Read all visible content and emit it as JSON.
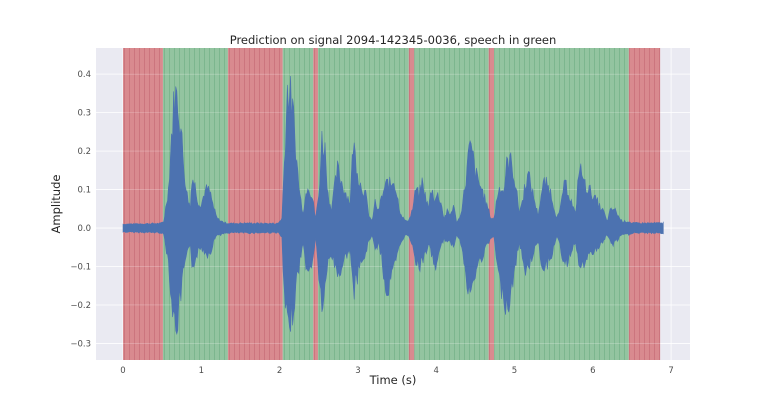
{
  "chart_data": {
    "type": "area",
    "title": "Prediction on signal 2094-142345-0036, speech in green",
    "xlabel": "Time (s)",
    "ylabel": "Amplitude",
    "xlim": [
      -0.34,
      7.25
    ],
    "ylim": [
      -0.343,
      0.468
    ],
    "xticks": [
      0,
      1,
      2,
      3,
      4,
      5,
      6,
      7
    ],
    "yticks": [
      -0.3,
      -0.2,
      -0.1,
      0.0,
      0.1,
      0.2,
      0.3,
      0.4
    ],
    "ytick_labels": [
      "−0.3",
      "−0.2",
      "−0.1",
      "0.0",
      "0.1",
      "0.2",
      "0.3",
      "0.4"
    ],
    "grid": true,
    "background": "#eaeaf2",
    "frame_width_s": 0.064,
    "segments": [
      {
        "label": "non-speech",
        "color": "#d98a8f",
        "start": 0.0,
        "end": 0.51
      },
      {
        "label": "speech",
        "color": "#93c4a0",
        "start": 0.51,
        "end": 1.34
      },
      {
        "label": "non-speech",
        "color": "#d98a8f",
        "start": 1.34,
        "end": 2.04
      },
      {
        "label": "speech",
        "color": "#93c4a0",
        "start": 2.04,
        "end": 2.43
      },
      {
        "label": "non-speech",
        "color": "#d98a8f",
        "start": 2.43,
        "end": 2.49
      },
      {
        "label": "speech",
        "color": "#93c4a0",
        "start": 2.49,
        "end": 3.65
      },
      {
        "label": "non-speech",
        "color": "#d98a8f",
        "start": 3.65,
        "end": 3.72
      },
      {
        "label": "speech",
        "color": "#93c4a0",
        "start": 3.72,
        "end": 4.67
      },
      {
        "label": "non-speech",
        "color": "#d98a8f",
        "start": 4.67,
        "end": 4.74
      },
      {
        "label": "speech",
        "color": "#93c4a0",
        "start": 4.74,
        "end": 6.46
      },
      {
        "label": "non-speech",
        "color": "#d98a8f",
        "start": 6.46,
        "end": 6.86
      }
    ],
    "series": [
      {
        "name": "signal",
        "color": "#4c72b0",
        "envelope": {
          "t": [
            0.0,
            0.48,
            0.52,
            0.58,
            0.62,
            0.66,
            0.7,
            0.74,
            0.78,
            0.82,
            0.86,
            0.88,
            0.92,
            0.96,
            1.0,
            1.04,
            1.08,
            1.12,
            1.16,
            1.2,
            1.26,
            1.32,
            1.4,
            1.6,
            1.8,
            1.98,
            2.03,
            2.06,
            2.1,
            2.14,
            2.18,
            2.22,
            2.26,
            2.3,
            2.36,
            2.42,
            2.46,
            2.5,
            2.54,
            2.58,
            2.62,
            2.66,
            2.7,
            2.74,
            2.78,
            2.82,
            2.86,
            2.9,
            2.94,
            2.98,
            3.02,
            3.06,
            3.1,
            3.14,
            3.18,
            3.22,
            3.26,
            3.3,
            3.34,
            3.38,
            3.42,
            3.46,
            3.5,
            3.54,
            3.58,
            3.62,
            3.66,
            3.7,
            3.74,
            3.78,
            3.82,
            3.86,
            3.9,
            3.94,
            3.98,
            4.02,
            4.06,
            4.1,
            4.14,
            4.18,
            4.22,
            4.26,
            4.3,
            4.34,
            4.38,
            4.42,
            4.46,
            4.5,
            4.54,
            4.58,
            4.62,
            4.66,
            4.7,
            4.74,
            4.78,
            4.82,
            4.86,
            4.9,
            4.94,
            4.98,
            5.02,
            5.06,
            5.1,
            5.14,
            5.18,
            5.22,
            5.26,
            5.3,
            5.34,
            5.38,
            5.42,
            5.46,
            5.5,
            5.54,
            5.58,
            5.62,
            5.66,
            5.7,
            5.74,
            5.78,
            5.82,
            5.86,
            5.9,
            5.94,
            5.98,
            6.02,
            6.06,
            6.1,
            6.14,
            6.18,
            6.22,
            6.26,
            6.3,
            6.34,
            6.38,
            6.42,
            6.46,
            6.5,
            6.7,
            6.9
          ],
          "upper": [
            0.012,
            0.014,
            0.02,
            0.12,
            0.28,
            0.41,
            0.39,
            0.3,
            0.18,
            0.1,
            0.06,
            0.16,
            0.13,
            0.08,
            0.07,
            0.11,
            0.12,
            0.1,
            0.06,
            0.03,
            0.02,
            0.015,
            0.014,
            0.015,
            0.014,
            0.014,
            0.03,
            0.2,
            0.42,
            0.4,
            0.33,
            0.2,
            0.1,
            0.05,
            0.14,
            0.09,
            0.03,
            0.1,
            0.27,
            0.24,
            0.1,
            0.06,
            0.12,
            0.18,
            0.15,
            0.12,
            0.1,
            0.08,
            0.26,
            0.2,
            0.14,
            0.12,
            0.1,
            0.04,
            0.02,
            0.08,
            0.05,
            0.09,
            0.12,
            0.14,
            0.13,
            0.15,
            0.1,
            0.05,
            0.03,
            0.02,
            0.03,
            0.06,
            0.12,
            0.1,
            0.14,
            0.1,
            0.06,
            0.12,
            0.09,
            0.1,
            0.08,
            0.03,
            0.05,
            0.04,
            0.07,
            0.02,
            0.03,
            0.08,
            0.15,
            0.24,
            0.23,
            0.17,
            0.14,
            0.12,
            0.09,
            0.06,
            0.03,
            0.03,
            0.1,
            0.13,
            0.11,
            0.19,
            0.21,
            0.18,
            0.12,
            0.05,
            0.08,
            0.14,
            0.16,
            0.12,
            0.08,
            0.04,
            0.1,
            0.14,
            0.13,
            0.11,
            0.07,
            0.03,
            0.05,
            0.12,
            0.13,
            0.1,
            0.07,
            0.04,
            0.18,
            0.17,
            0.13,
            0.12,
            0.11,
            0.09,
            0.08,
            0.06,
            0.05,
            0.02,
            0.05,
            0.06,
            0.05,
            0.03,
            0.02,
            0.02,
            0.02,
            0.015,
            0.015,
            0.015
          ],
          "lower": [
            -0.012,
            -0.014,
            -0.02,
            -0.1,
            -0.22,
            -0.3,
            -0.28,
            -0.2,
            -0.12,
            -0.08,
            -0.06,
            -0.11,
            -0.1,
            -0.07,
            -0.06,
            -0.07,
            -0.08,
            -0.07,
            -0.04,
            -0.02,
            -0.02,
            -0.015,
            -0.014,
            -0.015,
            -0.014,
            -0.014,
            -0.03,
            -0.22,
            -0.3,
            -0.28,
            -0.24,
            -0.16,
            -0.1,
            -0.05,
            -0.15,
            -0.1,
            -0.03,
            -0.14,
            -0.24,
            -0.2,
            -0.1,
            -0.08,
            -0.11,
            -0.14,
            -0.13,
            -0.1,
            -0.08,
            -0.06,
            -0.21,
            -0.16,
            -0.12,
            -0.1,
            -0.08,
            -0.04,
            -0.02,
            -0.07,
            -0.05,
            -0.08,
            -0.17,
            -0.2,
            -0.16,
            -0.12,
            -0.09,
            -0.05,
            -0.03,
            -0.02,
            -0.03,
            -0.05,
            -0.1,
            -0.12,
            -0.1,
            -0.08,
            -0.05,
            -0.08,
            -0.12,
            -0.1,
            -0.06,
            -0.03,
            -0.05,
            -0.04,
            -0.06,
            -0.02,
            -0.03,
            -0.08,
            -0.16,
            -0.2,
            -0.19,
            -0.14,
            -0.11,
            -0.09,
            -0.07,
            -0.05,
            -0.03,
            -0.03,
            -0.12,
            -0.18,
            -0.2,
            -0.24,
            -0.22,
            -0.16,
            -0.1,
            -0.05,
            -0.08,
            -0.14,
            -0.12,
            -0.09,
            -0.06,
            -0.04,
            -0.1,
            -0.12,
            -0.11,
            -0.09,
            -0.06,
            -0.03,
            -0.05,
            -0.1,
            -0.11,
            -0.09,
            -0.06,
            -0.04,
            -0.11,
            -0.13,
            -0.1,
            -0.09,
            -0.08,
            -0.07,
            -0.06,
            -0.05,
            -0.04,
            -0.02,
            -0.04,
            -0.05,
            -0.04,
            -0.03,
            -0.02,
            -0.02,
            -0.02,
            -0.015,
            -0.015,
            -0.015
          ]
        }
      }
    ]
  }
}
